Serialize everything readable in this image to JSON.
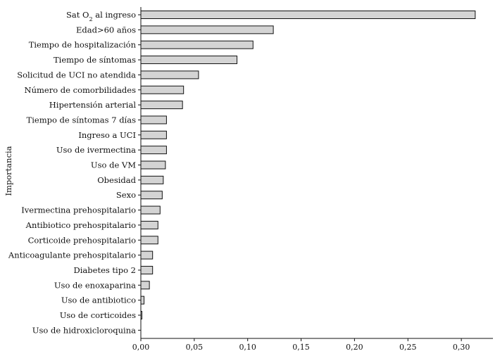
{
  "chart_data": {
    "type": "bar",
    "orientation": "horizontal",
    "ylabel": "Importancia",
    "xlim": [
      0,
      0.32
    ],
    "x_ticks": [
      0.0,
      0.05,
      0.1,
      0.15,
      0.2,
      0.25,
      0.3
    ],
    "x_tick_labels": [
      "0,00",
      "0,05",
      "0,10",
      "0,15",
      "0,20",
      "0,25",
      "0,30"
    ],
    "grid": false,
    "categories": [
      "Sat O2 al ingreso",
      "Edad>60 años",
      "Tiempo de hospitalización",
      "Tiempo de síntomas",
      "Solicitud de UCI no atendida",
      "Número de comorbilidades",
      "Hipertensión arterial",
      "Tiempo de síntomas 7 días",
      "Ingreso a UCI",
      "Uso de ivermectina",
      "Uso de VM",
      "Obesidad",
      "Sexo",
      "Ivermectina prehospitalario",
      "Antibiotico prehospitalario",
      "Corticoide prehospitalario",
      "Anticoagulante prehospitalario",
      "Diabetes tipo 2",
      "Uso de enoxaparina",
      "Uso de antibiotico",
      "Uso de corticoides",
      "Uso de hidroxicloroquina"
    ],
    "values": [
      0.313,
      0.124,
      0.105,
      0.09,
      0.054,
      0.04,
      0.039,
      0.024,
      0.024,
      0.024,
      0.023,
      0.021,
      0.02,
      0.018,
      0.016,
      0.016,
      0.011,
      0.011,
      0.008,
      0.003,
      0.001,
      0.0
    ]
  }
}
